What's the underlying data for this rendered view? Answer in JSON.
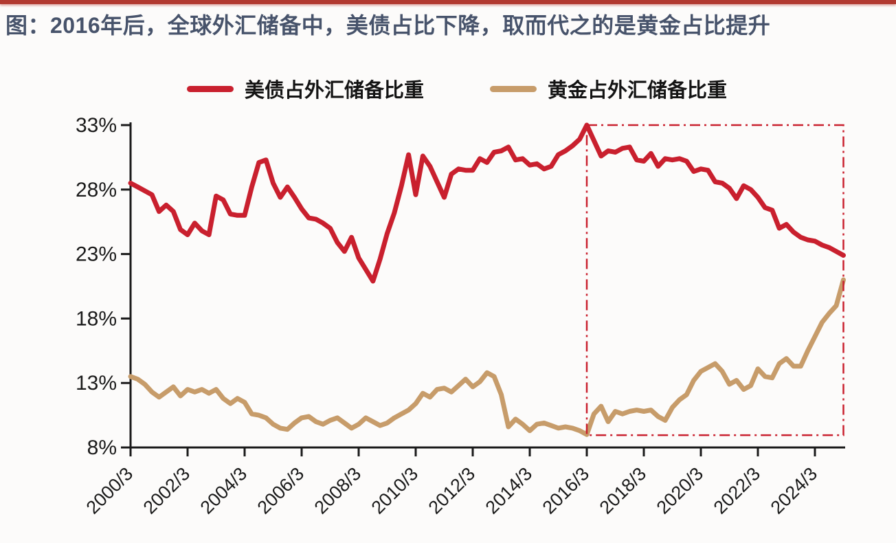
{
  "page": {
    "title": "图：2016年后，全球外汇储备中，美债占比下降，取而代之的是黄金占比提升",
    "top_bar_color": "#b23a31",
    "title_color": "#47536b",
    "background_color": "#fcfbfa",
    "axis_color": "#1a1a1a"
  },
  "legend": [
    {
      "id": "us-treasury-share",
      "label": "美债占外汇储备比重",
      "color": "#c9202e"
    },
    {
      "id": "gold-share",
      "label": "黄金占外汇储备比重",
      "color": "#c79c6a"
    }
  ],
  "chart_data": {
    "type": "line",
    "title": "",
    "xlabel": "",
    "ylabel": "",
    "frequency": "quarterly",
    "x_start": "2000/3",
    "x_end": "2025/3",
    "ylim": [
      8,
      33
    ],
    "grid": false,
    "legend_position": "top",
    "y_ticks": [
      33,
      28,
      23,
      18,
      13,
      8
    ],
    "y_tick_labels": [
      "33%",
      "28%",
      "23%",
      "18%",
      "13%",
      "8%"
    ],
    "x_tick_labels": [
      "2000/3",
      "2002/3",
      "2004/3",
      "2006/3",
      "2008/3",
      "2010/3",
      "2012/3",
      "2014/3",
      "2016/3",
      "2018/3",
      "2020/3",
      "2022/3",
      "2024/3"
    ],
    "x_ticks_every_quarters": 8,
    "series": [
      {
        "id": "us-treasury-share",
        "name": "美债占外汇储备比重",
        "color": "#c9202e",
        "values": [
          28.5,
          28.2,
          27.9,
          27.6,
          26.3,
          26.8,
          26.3,
          24.9,
          24.5,
          25.4,
          24.8,
          24.5,
          27.5,
          27.2,
          26.1,
          26.0,
          26.0,
          28.2,
          30.1,
          30.3,
          28.5,
          27.4,
          28.2,
          27.4,
          26.5,
          25.8,
          25.7,
          25.4,
          25.0,
          23.9,
          23.2,
          24.3,
          22.7,
          21.8,
          20.9,
          22.6,
          24.6,
          26.2,
          28.3,
          30.7,
          27.6,
          30.6,
          29.8,
          28.6,
          27.4,
          29.2,
          29.6,
          29.5,
          29.5,
          30.4,
          30.1,
          30.9,
          31.0,
          31.3,
          30.3,
          30.4,
          29.9,
          30.0,
          29.6,
          29.8,
          30.7,
          31.0,
          31.4,
          31.9,
          33.0,
          31.8,
          30.6,
          31.0,
          30.9,
          31.2,
          31.3,
          30.3,
          30.2,
          30.8,
          29.8,
          30.4,
          30.3,
          30.4,
          30.2,
          29.4,
          29.6,
          29.5,
          28.6,
          28.5,
          28.1,
          27.3,
          28.3,
          28.0,
          27.4,
          26.6,
          26.4,
          25.0,
          25.3,
          24.7,
          24.3,
          24.1,
          24.0,
          23.7,
          23.5,
          23.2,
          22.9
        ]
      },
      {
        "id": "gold-share",
        "name": "黄金占外汇储备比重",
        "color": "#c79c6a",
        "values": [
          13.5,
          13.3,
          12.9,
          12.3,
          11.9,
          12.3,
          12.7,
          12.0,
          12.5,
          12.3,
          12.5,
          12.2,
          12.5,
          11.8,
          11.4,
          11.8,
          11.5,
          10.6,
          10.5,
          10.3,
          9.8,
          9.5,
          9.4,
          9.9,
          10.3,
          10.4,
          10.0,
          9.8,
          10.1,
          10.3,
          9.9,
          9.5,
          9.8,
          10.3,
          10.0,
          9.7,
          9.9,
          10.3,
          10.6,
          10.9,
          11.4,
          12.2,
          11.9,
          12.5,
          12.6,
          12.3,
          12.8,
          13.3,
          12.7,
          13.1,
          13.8,
          13.5,
          12.1,
          9.6,
          10.2,
          9.8,
          9.3,
          9.8,
          9.9,
          9.7,
          9.5,
          9.6,
          9.5,
          9.3,
          9.0,
          10.6,
          11.2,
          10.0,
          10.8,
          10.6,
          10.8,
          10.9,
          10.8,
          10.9,
          10.4,
          10.1,
          11.1,
          11.7,
          12.1,
          13.2,
          13.9,
          14.2,
          14.5,
          13.9,
          12.9,
          13.2,
          12.5,
          12.8,
          14.1,
          13.5,
          13.4,
          14.5,
          14.9,
          14.3,
          14.3,
          15.5,
          16.6,
          17.7,
          18.4,
          19.0,
          21.0
        ]
      }
    ],
    "annotation_box": {
      "x_from": "2016/3",
      "x_from_quarter_index": 64,
      "x_to_quarter_index": 100,
      "y_top": 33,
      "y_bottom": 8.95,
      "color": "#c9202e",
      "style": "dash-dot"
    }
  }
}
